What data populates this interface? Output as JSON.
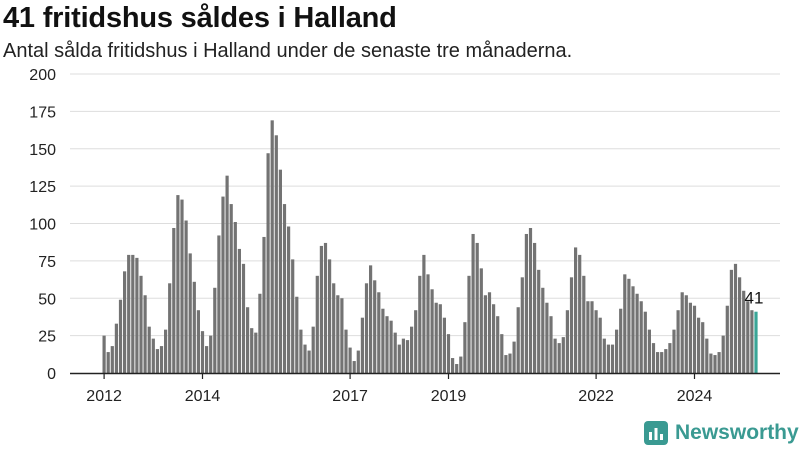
{
  "title": "41 fritidshus såldes i Halland",
  "subtitle": "Antal sålda fritidshus i Halland under de senaste tre månaderna.",
  "brand": {
    "name": "Newsworthy",
    "logo_icon": "bar-chart-logo-icon",
    "color": "#3a9a92"
  },
  "colors": {
    "bar": "#737373",
    "highlight": "#3aa597",
    "axis": "#222222",
    "grid": "#dddddd"
  },
  "chart_data": {
    "type": "bar",
    "title": "41 fritidshus såldes i Halland",
    "subtitle": "Antal sålda fritidshus i Halland under de senaste tre månaderna.",
    "xlabel": "",
    "ylabel": "",
    "ylim": [
      0,
      200
    ],
    "yticks": [
      0,
      25,
      50,
      75,
      100,
      125,
      150,
      175,
      200
    ],
    "xticks": [
      {
        "label": "2012",
        "month_index": 0
      },
      {
        "label": "2014",
        "month_index": 24
      },
      {
        "label": "2017",
        "month_index": 60
      },
      {
        "label": "2019",
        "month_index": 84
      },
      {
        "label": "2022",
        "month_index": 120
      },
      {
        "label": "2024",
        "month_index": 144
      }
    ],
    "grid": "horizontal",
    "start": "2012-01",
    "frequency": "monthly",
    "values": [
      25,
      14,
      18,
      33,
      49,
      68,
      79,
      79,
      77,
      65,
      52,
      31,
      23,
      16,
      18,
      29,
      60,
      97,
      119,
      116,
      102,
      80,
      61,
      42,
      28,
      18,
      25,
      57,
      92,
      118,
      132,
      113,
      101,
      83,
      73,
      44,
      30,
      27,
      53,
      91,
      147,
      169,
      159,
      136,
      113,
      98,
      76,
      51,
      29,
      19,
      15,
      31,
      65,
      85,
      87,
      76,
      60,
      52,
      50,
      29,
      17,
      8,
      15,
      37,
      60,
      72,
      62,
      54,
      43,
      38,
      35,
      27,
      19,
      23,
      22,
      31,
      42,
      65,
      79,
      66,
      56,
      47,
      46,
      37,
      26,
      10,
      6,
      11,
      34,
      65,
      93,
      87,
      70,
      52,
      54,
      46,
      38,
      26,
      12,
      13,
      21,
      44,
      64,
      93,
      97,
      87,
      69,
      57,
      47,
      38,
      23,
      20,
      24,
      42,
      64,
      84,
      79,
      65,
      48,
      48,
      42,
      37,
      23,
      19,
      19,
      29,
      43,
      66,
      63,
      58,
      53,
      48,
      41,
      29,
      20,
      14,
      14,
      16,
      20,
      29,
      42,
      54,
      52,
      47,
      45,
      37,
      34,
      23,
      13,
      12,
      14,
      25,
      45,
      69,
      73,
      64,
      55,
      48,
      42,
      41
    ],
    "highlight_last": true,
    "last_value_label": "41"
  }
}
